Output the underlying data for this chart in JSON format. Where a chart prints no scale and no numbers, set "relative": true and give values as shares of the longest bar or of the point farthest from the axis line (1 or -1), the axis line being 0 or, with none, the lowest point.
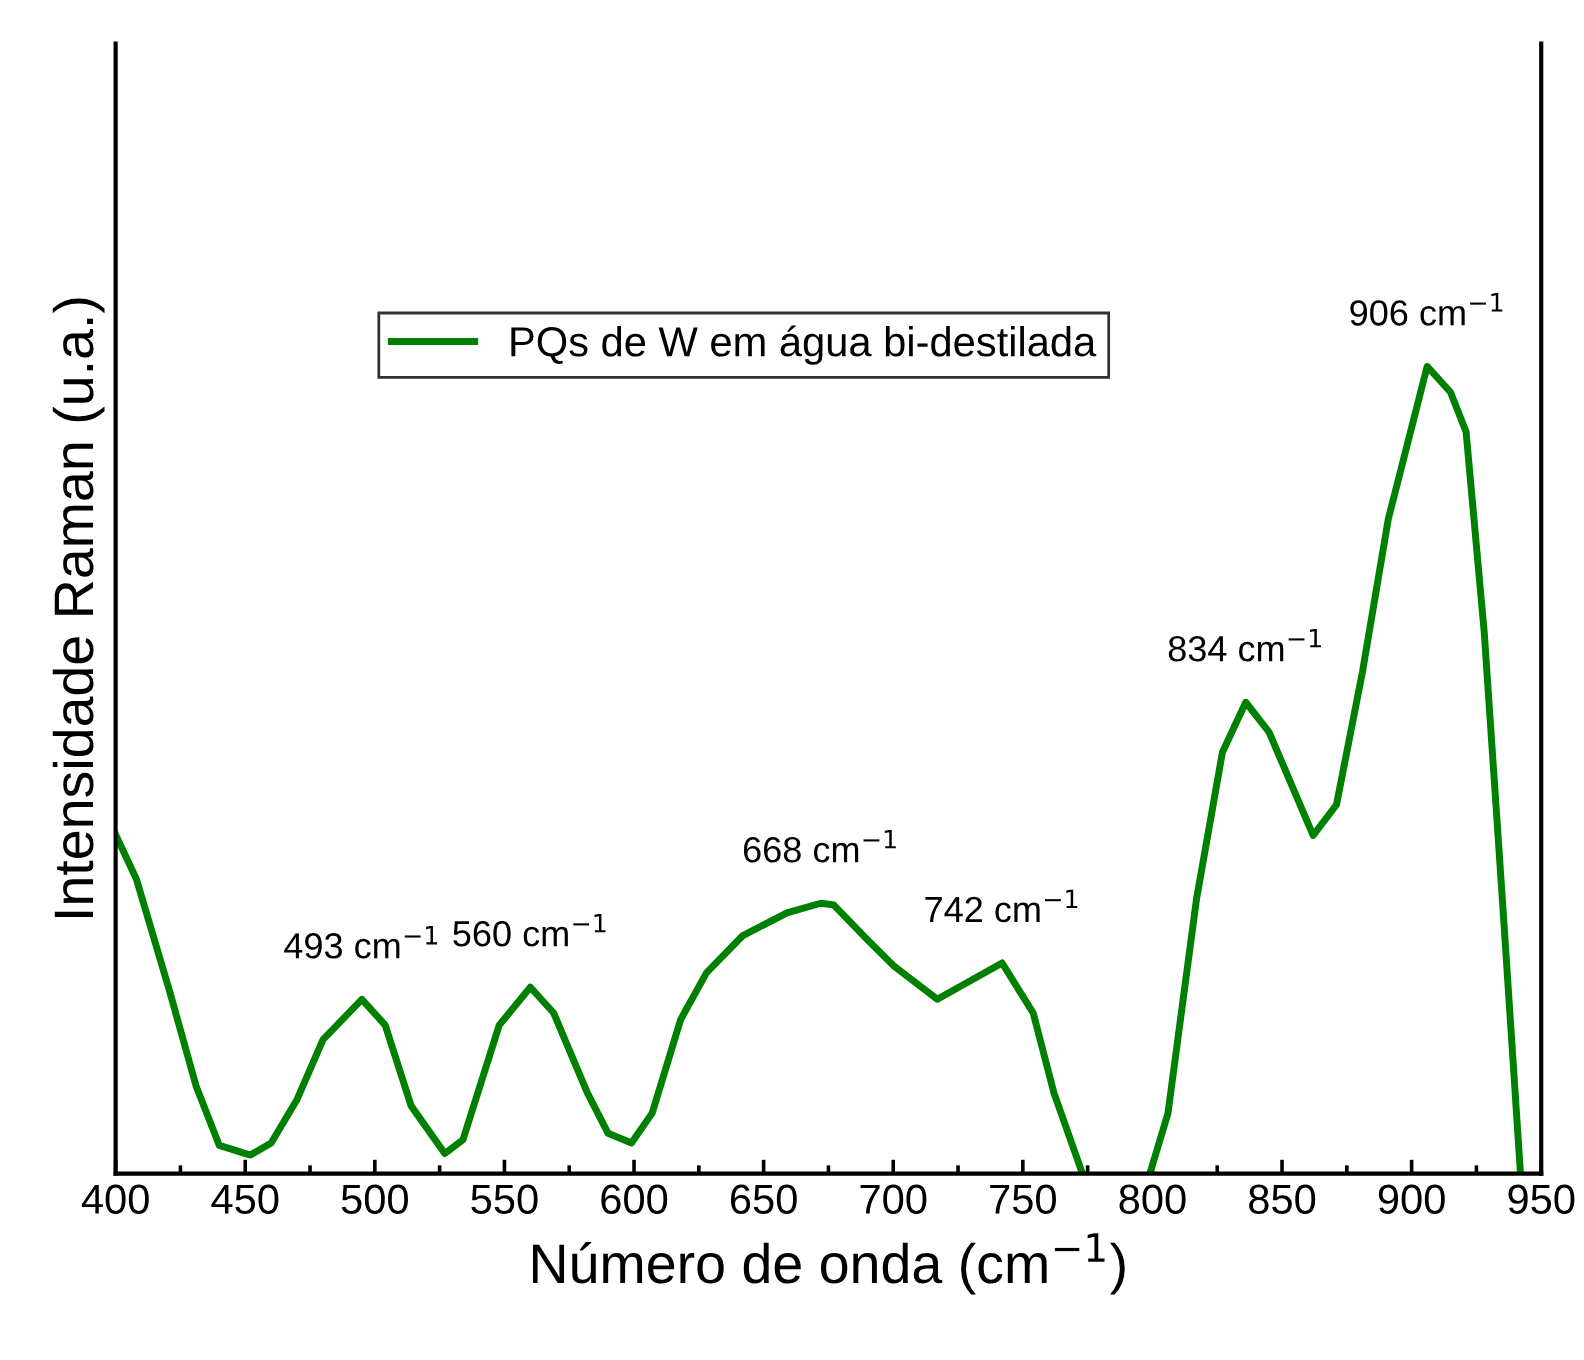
{
  "chart_data": {
    "type": "line",
    "relative": true,
    "xlabel": "Número de onda (cm$^{−1}$)",
    "ylabel": "Intensidade Raman (u.a.)",
    "xlim": [
      400,
      950
    ],
    "xticks": [
      400,
      {
        "value": 425,
        "label": null
      },
      450,
      {
        "value": 475,
        "label": null
      },
      500,
      {
        "value": 525,
        "label": null
      },
      550,
      {
        "value": 575,
        "label": null
      },
      600,
      {
        "value": 625,
        "label": null
      },
      650,
      {
        "value": 675,
        "label": null
      },
      700,
      {
        "value": 725,
        "label": null
      },
      750,
      {
        "value": 775,
        "label": null
      },
      800,
      {
        "value": 825,
        "label": null
      },
      850,
      {
        "value": 875,
        "label": null
      },
      900,
      {
        "value": 925,
        "label": null
      },
      950
    ],
    "tick_labels": "x",
    "legend": "top left",
    "grid": false,
    "series": [
      {
        "name": "PQs de W em água bi-destilada",
        "color": "#008000",
        "x": [
          400,
          408,
          421,
          431,
          440,
          452,
          460,
          470,
          480,
          495,
          504,
          514,
          527,
          534,
          548,
          560,
          569,
          582,
          590,
          599,
          607,
          618,
          628,
          642,
          659,
          672,
          677,
          690,
          700,
          717,
          742,
          754,
          762,
          773,
          786,
          799,
          806,
          817,
          827,
          836,
          845,
          862,
          871,
          881,
          891,
          906,
          915,
          921,
          928,
          935,
          942
        ],
        "values": [
          0.42,
          0.365,
          0.224,
          0.109,
          0.035,
          0.023,
          0.038,
          0.092,
          0.166,
          0.216,
          0.184,
          0.084,
          0.025,
          0.042,
          0.184,
          0.231,
          0.199,
          0.1,
          0.05,
          0.038,
          0.075,
          0.191,
          0.249,
          0.295,
          0.323,
          0.335,
          0.333,
          0.29,
          0.258,
          0.216,
          0.261,
          0.199,
          0.1,
          0,
          null,
          0,
          0.075,
          0.34,
          0.522,
          0.584,
          0.547,
          0.419,
          0.457,
          0.621,
          0.811,
          1,
          0.968,
          0.919,
          0.671,
          0.34,
          0
        ]
      }
    ],
    "annotations": [
      {
        "text": "493 cm$^{−1}$",
        "x": 495,
        "y": 0.216
      },
      {
        "text": "560 cm$^{−1}$",
        "x": 560,
        "y": 0.231
      },
      {
        "text": "668 cm$^{−1}$",
        "x": 672,
        "y": 0.335
      },
      {
        "text": "742 cm$^{−1}$",
        "x": 742,
        "y": 0.261
      },
      {
        "text": "834 cm$^{−1}$",
        "x": 836,
        "y": 0.584
      },
      {
        "text": "906 cm$^{−1}$",
        "x": 906,
        "y": 1
      }
    ]
  }
}
